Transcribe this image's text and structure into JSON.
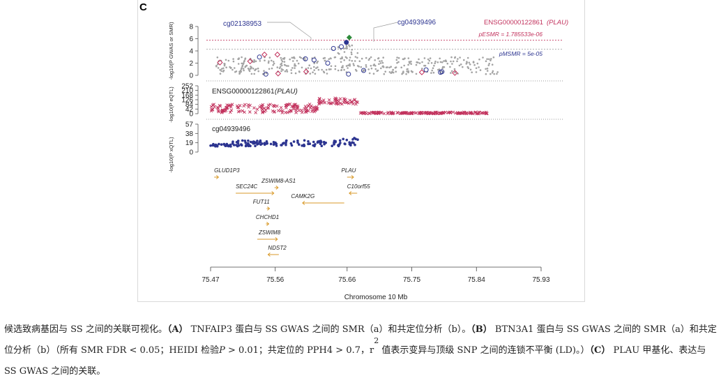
{
  "panel_letter": "C",
  "caption": {
    "p1": "候选致病基因与 SS 之间的关联可视化。",
    "a_tag": "（A）",
    "p2": " TNFAIP3 蛋白与 SS GWAS 之间的 SMR（a）和共定位分析（b）。",
    "b_tag": "（B）",
    "p3": " BTN3A1 蛋白与 SS GWAS 之间的 SMR（a）和共定位分析（b）（所有 SMR FDR < 0.05；HEIDI 检验",
    "p_italic": "P",
    "p4": " > 0.01；共定位的 PPH4 > 0.7，r",
    "sup": "2",
    "p5": " 值表示变异与顶级 SNP 之间的连锁不平衡 (LD)。）",
    "c_tag": "（C）",
    "p6": " PLAU 甲基化、表达与 SS GWAS 之间的关联。"
  },
  "colors": {
    "grey": "#a3a3a3",
    "red": "#c2325d",
    "blue": "#2c3490",
    "orange": "#d99a2a",
    "green": "#2e8b3a"
  },
  "chart_data": [
    {
      "type": "scatter",
      "panel": "SMR / GWAS",
      "ylabel": "-log10(P GWAS or SMR)",
      "yticks": [
        0,
        2,
        4,
        6,
        8
      ],
      "ylim": [
        0,
        9
      ],
      "xlim": [
        75.47,
        75.93
      ],
      "annotations": [
        "cg02138953",
        "cg04939496",
        "ENSG00000122861 (PLAU)"
      ],
      "thresholds": [
        {
          "label": "pESMR = 1.785533e-06",
          "y": 5.75,
          "color": "red"
        },
        {
          "label": "pMSMR = 5e-05",
          "y": 4.3,
          "color": "grey"
        }
      ],
      "gwas_band_y": [
        0.2,
        3.0
      ],
      "smr_expression_points": [
        {
          "x": 75.483,
          "y": 2.1
        },
        {
          "x": 75.525,
          "y": 2.3
        },
        {
          "x": 75.545,
          "y": 3.4
        },
        {
          "x": 75.563,
          "y": 3.4
        },
        {
          "x": 75.564,
          "y": 0.3
        },
        {
          "x": 75.603,
          "y": 0.6
        },
        {
          "x": 75.764,
          "y": 0.5
        },
        {
          "x": 75.81,
          "y": 0.4
        }
      ],
      "smr_methylation_points": [
        {
          "x": 75.538,
          "y": 3.0
        },
        {
          "x": 75.547,
          "y": 0.2
        },
        {
          "x": 75.602,
          "y": 2.7
        },
        {
          "x": 75.614,
          "y": 2.5
        },
        {
          "x": 75.633,
          "y": 2.0
        },
        {
          "x": 75.641,
          "y": 4.4
        },
        {
          "x": 75.652,
          "y": 4.7
        },
        {
          "x": 75.662,
          "y": 0.2
        },
        {
          "x": 75.683,
          "y": 0.8
        },
        {
          "x": 75.77,
          "y": 0.9
        },
        {
          "x": 75.792,
          "y": 0.6
        },
        {
          "x": 75.79,
          "y": 0.5
        }
      ],
      "top_snp": {
        "x": 75.659,
        "y": 5.4
      },
      "diamond": {
        "x": 75.663,
        "y": 6.2
      }
    },
    {
      "type": "scatter",
      "panel": "eQTL",
      "title": "ENSG00000122861 (PLAU)",
      "ylabel": "-log10(P eQTL)",
      "yticks": [
        0,
        42,
        84,
        126,
        168,
        210,
        252
      ],
      "ylim": [
        0,
        260
      ],
      "xlim": [
        75.47,
        75.93
      ],
      "segments": [
        {
          "x0": 75.47,
          "x1": 75.62,
          "y": 49,
          "jitter": 40
        },
        {
          "x0": 75.62,
          "x1": 75.645,
          "y": 115,
          "jitter": 28
        },
        {
          "x0": 75.645,
          "x1": 75.675,
          "y": 112,
          "jitter": 26
        },
        {
          "x0": 75.675,
          "x1": 75.855,
          "y": 7,
          "jitter": 7
        }
      ]
    },
    {
      "type": "scatter",
      "panel": "mQTL",
      "title": "cg04939496",
      "ylabel": "-log10(P xQTL)",
      "yticks": [
        0,
        19,
        38,
        57
      ],
      "ylim": [
        0,
        60
      ],
      "xlim": [
        75.47,
        75.93
      ],
      "segments": [
        {
          "x0": 75.47,
          "x1": 75.5,
          "y": 14,
          "jitter": 5
        },
        {
          "x0": 75.5,
          "x1": 75.65,
          "y": 18,
          "jitter": 12
        },
        {
          "x0": 75.65,
          "x1": 75.675,
          "y": 22,
          "jitter": 16
        }
      ]
    }
  ],
  "genes": [
    {
      "name": "GLUD1P3",
      "x0": 75.475,
      "x1": 75.481,
      "row": 0,
      "dir": "+",
      "label_x": 75.475
    },
    {
      "name": "ZSWIM8-AS1",
      "x0": 75.559,
      "x1": 75.564,
      "row": 1,
      "dir": "+",
      "label_x": 75.541
    },
    {
      "name": "SEC24C",
      "x0": 75.505,
      "x1": 75.558,
      "row": 2,
      "dir": "+",
      "label_x": 75.505
    },
    {
      "name": "CAMK2G",
      "x0": 75.598,
      "x1": 75.656,
      "row": 3,
      "dir": "-",
      "label_x": 75.582
    },
    {
      "name": "PLAU",
      "x0": 75.66,
      "x1": 75.669,
      "row": 0,
      "dir": "+",
      "label_x": 75.652
    },
    {
      "name": "C10orf55",
      "x0": 75.663,
      "x1": 75.674,
      "row": 2,
      "dir": "-",
      "label_x": 75.66
    },
    {
      "name": "FUT11",
      "x0": 75.548,
      "x1": 75.552,
      "row": 4,
      "dir": "+",
      "label_x": 75.529
    },
    {
      "name": "CHCHD1",
      "x0": 75.547,
      "x1": 75.551,
      "row": 5,
      "dir": "+",
      "label_x": 75.533
    },
    {
      "name": "ZSWIM8",
      "x0": 75.535,
      "x1": 75.563,
      "row": 6,
      "dir": "+",
      "label_x": 75.537
    },
    {
      "name": "NDST2",
      "x0": 75.55,
      "x1": 75.565,
      "row": 7,
      "dir": "-",
      "label_x": 75.55
    }
  ],
  "x_axis": {
    "label": "Chromosome 10 Mb",
    "ticks": [
      75.47,
      75.56,
      75.66,
      75.75,
      75.84,
      75.93
    ],
    "tick_labels": [
      "75.47",
      "75.56",
      "75.66",
      "75.75",
      "75.84",
      "75.93"
    ]
  }
}
